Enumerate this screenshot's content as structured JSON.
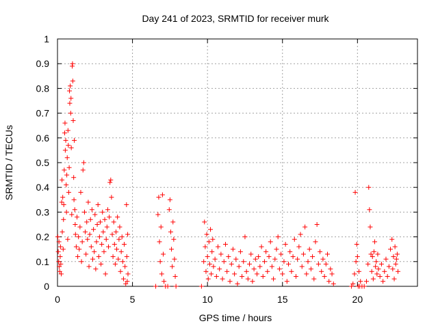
{
  "chart_data": {
    "type": "scatter",
    "title": "Day 241 of 2023, SRMTID for receiver murk",
    "xlabel": "GPS time / hours",
    "ylabel": "SRMTID / TECUs",
    "xlim": [
      0,
      24
    ],
    "ylim": [
      0,
      1
    ],
    "xticks": [
      0,
      5,
      10,
      15,
      20
    ],
    "xtick_labels": [
      "0",
      "5",
      "10",
      "15",
      "20"
    ],
    "yticks": [
      0,
      0.1,
      0.2,
      0.3,
      0.4,
      0.5,
      0.6,
      0.7,
      0.8,
      0.9,
      1
    ],
    "ytick_labels": [
      "0",
      "0.1",
      "0.2",
      "0.3",
      "0.4",
      "0.5",
      "0.6",
      "0.7",
      "0.8",
      "0.9",
      "1"
    ],
    "grid": true,
    "marker": "+",
    "marker_color": "#ff0000",
    "series": [
      {
        "name": "SRMTID",
        "points": [
          [
            0.02,
            0.2
          ],
          [
            0.05,
            0.14
          ],
          [
            0.08,
            0.1
          ],
          [
            0.1,
            0.18
          ],
          [
            0.12,
            0.08
          ],
          [
            0.15,
            0.06
          ],
          [
            0.18,
            0.12
          ],
          [
            0.2,
            0.16
          ],
          [
            0.22,
            0.09
          ],
          [
            0.25,
            0.05
          ],
          [
            0.28,
            0.34
          ],
          [
            0.3,
            0.43
          ],
          [
            0.32,
            0.22
          ],
          [
            0.35,
            0.36
          ],
          [
            0.38,
            0.15
          ],
          [
            0.4,
            0.27
          ],
          [
            0.42,
            0.33
          ],
          [
            0.45,
            0.47
          ],
          [
            0.48,
            0.62
          ],
          [
            0.5,
            0.66
          ],
          [
            0.52,
            0.55
          ],
          [
            0.55,
            0.59
          ],
          [
            0.58,
            0.41
          ],
          [
            0.6,
            0.3
          ],
          [
            0.62,
            0.45
          ],
          [
            0.65,
            0.52
          ],
          [
            0.68,
            0.19
          ],
          [
            0.7,
            0.63
          ],
          [
            0.72,
            0.57
          ],
          [
            0.75,
            0.38
          ],
          [
            0.78,
            0.48
          ],
          [
            0.8,
            0.79
          ],
          [
            0.82,
            0.74
          ],
          [
            0.85,
            0.81
          ],
          [
            0.88,
            0.7
          ],
          [
            0.9,
            0.76
          ],
          [
            0.92,
            0.56
          ],
          [
            0.95,
            0.29
          ],
          [
            0.98,
            0.89
          ],
          [
            1.0,
            0.9
          ],
          [
            1.02,
            0.83
          ],
          [
            1.05,
            0.67
          ],
          [
            1.08,
            0.44
          ],
          [
            1.1,
            0.35
          ],
          [
            1.12,
            0.59
          ],
          [
            1.15,
            0.31
          ],
          [
            1.18,
            0.25
          ],
          [
            1.2,
            0.21
          ],
          [
            1.25,
            0.16
          ],
          [
            1.3,
            0.28
          ],
          [
            1.35,
            0.12
          ],
          [
            1.4,
            0.2
          ],
          [
            1.45,
            0.15
          ],
          [
            1.5,
            0.24
          ],
          [
            1.55,
            0.38
          ],
          [
            1.6,
            0.1
          ],
          [
            1.65,
            0.18
          ],
          [
            1.7,
            0.47
          ],
          [
            1.75,
            0.5
          ],
          [
            1.8,
            0.3
          ],
          [
            1.85,
            0.22
          ],
          [
            1.9,
            0.13
          ],
          [
            1.95,
            0.26
          ],
          [
            2.0,
            0.19
          ],
          [
            2.05,
            0.34
          ],
          [
            2.1,
            0.08
          ],
          [
            2.15,
            0.21
          ],
          [
            2.2,
            0.27
          ],
          [
            2.25,
            0.16
          ],
          [
            2.3,
            0.31
          ],
          [
            2.35,
            0.11
          ],
          [
            2.4,
            0.23
          ],
          [
            2.45,
            0.14
          ],
          [
            2.5,
            0.29
          ],
          [
            2.55,
            0.07
          ],
          [
            2.6,
            0.18
          ],
          [
            2.65,
            0.25
          ],
          [
            2.7,
            0.33
          ],
          [
            2.75,
            0.12
          ],
          [
            2.8,
            0.2
          ],
          [
            2.85,
            0.26
          ],
          [
            2.9,
            0.09
          ],
          [
            2.95,
            0.17
          ],
          [
            3.0,
            0.3
          ],
          [
            3.05,
            0.22
          ],
          [
            3.1,
            0.14
          ],
          [
            3.15,
            0.27
          ],
          [
            3.2,
            0.05
          ],
          [
            3.25,
            0.19
          ],
          [
            3.3,
            0.24
          ],
          [
            3.35,
            0.31
          ],
          [
            3.4,
            0.16
          ],
          [
            3.45,
            0.28
          ],
          [
            3.5,
            0.42
          ],
          [
            3.55,
            0.43
          ],
          [
            3.6,
            0.36
          ],
          [
            3.65,
            0.21
          ],
          [
            3.7,
            0.12
          ],
          [
            3.75,
            0.26
          ],
          [
            3.8,
            0.17
          ],
          [
            3.85,
            0.09
          ],
          [
            3.9,
            0.22
          ],
          [
            3.95,
            0.15
          ],
          [
            4.0,
            0.28
          ],
          [
            4.05,
            0.11
          ],
          [
            4.1,
            0.19
          ],
          [
            4.15,
            0.24
          ],
          [
            4.2,
            0.06
          ],
          [
            4.25,
            0.14
          ],
          [
            4.3,
            0.2
          ],
          [
            4.35,
            0.1
          ],
          [
            4.4,
            0.03
          ],
          [
            4.45,
            0.17
          ],
          [
            4.5,
            0.08
          ],
          [
            4.55,
            0.01
          ],
          [
            4.6,
            0.33
          ],
          [
            4.62,
            0.12
          ],
          [
            4.65,
            0.02
          ],
          [
            4.68,
            0.21
          ],
          [
            4.7,
            0.05
          ],
          [
            6.55,
            0.0
          ],
          [
            6.7,
            0.29
          ],
          [
            6.75,
            0.36
          ],
          [
            6.8,
            0.18
          ],
          [
            6.85,
            0.1
          ],
          [
            6.9,
            0.24
          ],
          [
            6.95,
            0.05
          ],
          [
            7.0,
            0.37
          ],
          [
            7.05,
            0.13
          ],
          [
            7.1,
            0.02
          ],
          [
            7.2,
            0.0
          ],
          [
            7.35,
            0.0
          ],
          [
            7.45,
            0.31
          ],
          [
            7.5,
            0.35
          ],
          [
            7.55,
            0.22
          ],
          [
            7.6,
            0.15
          ],
          [
            7.65,
            0.08
          ],
          [
            7.7,
            0.26
          ],
          [
            7.75,
            0.19
          ],
          [
            7.8,
            0.11
          ],
          [
            7.85,
            0.04
          ],
          [
            7.9,
            0.0
          ],
          [
            9.6,
            0.0
          ],
          [
            9.75,
            0.1
          ],
          [
            9.8,
            0.26
          ],
          [
            9.85,
            0.16
          ],
          [
            9.9,
            0.06
          ],
          [
            9.95,
            0.21
          ],
          [
            10.0,
            0.12
          ],
          [
            10.05,
            0.03
          ],
          [
            10.1,
            0.18
          ],
          [
            10.15,
            0.09
          ],
          [
            10.2,
            0.23
          ],
          [
            10.25,
            0.05
          ],
          [
            10.3,
            0.14
          ],
          [
            10.35,
            0.19
          ],
          [
            10.4,
            0.08
          ],
          [
            10.5,
            0.11
          ],
          [
            10.6,
            0.04
          ],
          [
            10.7,
            0.16
          ],
          [
            10.8,
            0.07
          ],
          [
            10.9,
            0.13
          ],
          [
            11.0,
            0.03
          ],
          [
            11.1,
            0.1
          ],
          [
            11.2,
            0.17
          ],
          [
            11.3,
            0.06
          ],
          [
            11.4,
            0.12
          ],
          [
            11.5,
            0.02
          ],
          [
            11.6,
            0.09
          ],
          [
            11.7,
            0.15
          ],
          [
            11.8,
            0.05
          ],
          [
            11.9,
            0.11
          ],
          [
            12.0,
            0.01
          ],
          [
            12.1,
            0.08
          ],
          [
            12.2,
            0.14
          ],
          [
            12.3,
            0.04
          ],
          [
            12.4,
            0.1
          ],
          [
            12.5,
            0.2
          ],
          [
            12.6,
            0.06
          ],
          [
            12.7,
            0.03
          ],
          [
            12.8,
            0.09
          ],
          [
            12.9,
            0.13
          ],
          [
            13.0,
            0.02
          ],
          [
            13.1,
            0.07
          ],
          [
            13.2,
            0.11
          ],
          [
            13.3,
            0.05
          ],
          [
            13.4,
            0.12
          ],
          [
            13.5,
            0.08
          ],
          [
            13.6,
            0.16
          ],
          [
            13.7,
            0.04
          ],
          [
            13.8,
            0.1
          ],
          [
            13.9,
            0.14
          ],
          [
            14.0,
            0.06
          ],
          [
            14.1,
            0.12
          ],
          [
            14.2,
            0.18
          ],
          [
            14.3,
            0.08
          ],
          [
            14.4,
            0.03
          ],
          [
            14.5,
            0.11
          ],
          [
            14.6,
            0.15
          ],
          [
            14.7,
            0.2
          ],
          [
            14.8,
            0.07
          ],
          [
            14.9,
            0.13
          ],
          [
            15.0,
            0.05
          ],
          [
            15.1,
            0.1
          ],
          [
            15.2,
            0.17
          ],
          [
            15.3,
            0.02
          ],
          [
            15.4,
            0.09
          ],
          [
            15.5,
            0.14
          ],
          [
            15.6,
            0.06
          ],
          [
            15.7,
            0.12
          ],
          [
            15.8,
            0.19
          ],
          [
            15.9,
            0.04
          ],
          [
            16.0,
            0.11
          ],
          [
            16.1,
            0.16
          ],
          [
            16.2,
            0.21
          ],
          [
            16.3,
            0.08
          ],
          [
            16.4,
            0.13
          ],
          [
            16.5,
            0.24
          ],
          [
            16.6,
            0.05
          ],
          [
            16.7,
            0.1
          ],
          [
            16.8,
            0.15
          ],
          [
            16.9,
            0.07
          ],
          [
            17.0,
            0.12
          ],
          [
            17.1,
            0.03
          ],
          [
            17.2,
            0.18
          ],
          [
            17.3,
            0.25
          ],
          [
            17.4,
            0.09
          ],
          [
            17.5,
            0.14
          ],
          [
            17.6,
            0.06
          ],
          [
            17.7,
            0.11
          ],
          [
            17.8,
            0.04
          ],
          [
            17.9,
            0.09
          ],
          [
            18.0,
            0.13
          ],
          [
            18.1,
            0.02
          ],
          [
            18.2,
            0.07
          ],
          [
            18.3,
            0.05
          ],
          [
            18.4,
            0.01
          ],
          [
            19.6,
            0.0
          ],
          [
            19.7,
            0.01
          ],
          [
            19.8,
            0.05
          ],
          [
            19.85,
            0.38
          ],
          [
            19.9,
            0.1
          ],
          [
            19.95,
            0.17
          ],
          [
            20.0,
            0.12
          ],
          [
            20.05,
            0.0
          ],
          [
            20.1,
            0.06
          ],
          [
            20.15,
            0.0
          ],
          [
            20.2,
            0.02
          ],
          [
            20.3,
            0.0
          ],
          [
            20.45,
            0.0
          ],
          [
            20.6,
            0.02
          ],
          [
            20.7,
            0.09
          ],
          [
            20.75,
            0.4
          ],
          [
            20.8,
            0.31
          ],
          [
            20.85,
            0.24
          ],
          [
            20.9,
            0.13
          ],
          [
            20.95,
            0.06
          ],
          [
            21.0,
            0.12
          ],
          [
            21.05,
            0.03
          ],
          [
            21.1,
            0.14
          ],
          [
            21.15,
            0.18
          ],
          [
            21.2,
            0.08
          ],
          [
            21.25,
            0.1
          ],
          [
            21.3,
            0.05
          ],
          [
            21.35,
            0.13
          ],
          [
            21.4,
            0.07
          ],
          [
            21.5,
            0.04
          ],
          [
            21.6,
            0.09
          ],
          [
            21.7,
            0.02
          ],
          [
            21.8,
            0.06
          ],
          [
            21.9,
            0.11
          ],
          [
            22.0,
            0.04
          ],
          [
            22.1,
            0.08
          ],
          [
            22.2,
            0.15
          ],
          [
            22.3,
            0.19
          ],
          [
            22.35,
            0.07
          ],
          [
            22.4,
            0.12
          ],
          [
            22.45,
            0.03
          ],
          [
            22.5,
            0.16
          ],
          [
            22.55,
            0.09
          ],
          [
            22.6,
            0.11
          ],
          [
            22.65,
            0.13
          ],
          [
            22.7,
            0.06
          ]
        ]
      }
    ]
  }
}
